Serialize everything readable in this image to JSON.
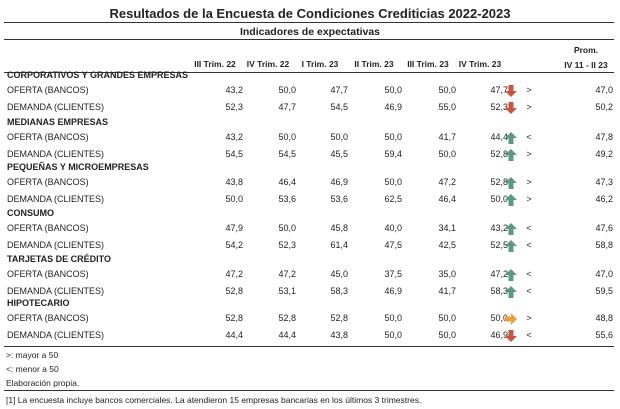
{
  "title": "Resultados de la Encuesta de Condiciones Crediticias 2022-2023",
  "subtitle": "Indicadores de expectativas",
  "columns": [
    "III Trim. 22",
    "IV Trim. 22",
    "I Trim. 23",
    "II Trim. 23",
    "III Trim. 23",
    "IV Trim. 23"
  ],
  "prom_header": [
    "Prom.",
    "IV 11 - II 23"
  ],
  "sections": [
    {
      "name": "CORPORATIVOS Y GRANDES EMPRESAS",
      "rows": [
        {
          "label": "OFERTA (BANCOS)",
          "values": [
            "43,2",
            "50,0",
            "47,7",
            "50,0",
            "50,0",
            "47,7"
          ],
          "arrow": "down",
          "cmp": ">",
          "prom": "47,0"
        },
        {
          "label": "DEMANDA (CLIENTES)",
          "values": [
            "52,3",
            "47,7",
            "54,5",
            "46,9",
            "55,0",
            "52,3"
          ],
          "arrow": "down",
          "cmp": ">",
          "prom": "50,2"
        }
      ]
    },
    {
      "name": "MEDIANAS EMPRESAS",
      "rows": [
        {
          "label": "OFERTA (BANCOS)",
          "values": [
            "43,2",
            "50,0",
            "50,0",
            "50,0",
            "41,7",
            "44,4"
          ],
          "arrow": "up",
          "cmp": "<",
          "prom": "47,8"
        },
        {
          "label": "DEMANDA (CLIENTES)",
          "values": [
            "54,5",
            "54,5",
            "45,5",
            "59,4",
            "50,0",
            "52,8"
          ],
          "arrow": "up",
          "cmp": ">",
          "prom": "49,2"
        }
      ]
    },
    {
      "name": "PEQUEÑAS Y MICROEMPRESAS",
      "rows": [
        {
          "label": "OFERTA (BANCOS)",
          "values": [
            "43,8",
            "46,4",
            "46,9",
            "50,0",
            "47,2",
            "52,8"
          ],
          "arrow": "up",
          "cmp": ">",
          "prom": "47,3"
        },
        {
          "label": "DEMANDA (CLIENTES)",
          "values": [
            "50,0",
            "53,6",
            "53,6",
            "62,5",
            "46,4",
            "50,0"
          ],
          "arrow": "up",
          "cmp": ">",
          "prom": "46,2"
        }
      ]
    },
    {
      "name": "CONSUMO",
      "rows": [
        {
          "label": "OFERTA (BANCOS)",
          "values": [
            "47,9",
            "50,0",
            "45,8",
            "40,0",
            "34,1",
            "43,2"
          ],
          "arrow": "up",
          "cmp": "<",
          "prom": "47,6"
        },
        {
          "label": "DEMANDA (CLIENTES)",
          "values": [
            "54,2",
            "52,3",
            "61,4",
            "47,5",
            "42,5",
            "52,5"
          ],
          "arrow": "up",
          "cmp": "<",
          "prom": "58,8"
        }
      ]
    },
    {
      "name": "TARJETAS DE CRÉDITO",
      "rows": [
        {
          "label": "OFERTA (BANCOS)",
          "values": [
            "47,2",
            "47,2",
            "45,0",
            "37,5",
            "35,0",
            "47,2"
          ],
          "arrow": "up",
          "cmp": "<",
          "prom": "47,0"
        },
        {
          "label": "DEMANDA (CLIENTES)",
          "values": [
            "52,8",
            "53,1",
            "58,3",
            "46,9",
            "41,7",
            "58,3"
          ],
          "arrow": "up",
          "cmp": "<",
          "prom": "59,5"
        }
      ]
    },
    {
      "name": "HIPOTECARIO",
      "rows": [
        {
          "label": "OFERTA (BANCOS)",
          "values": [
            "52,8",
            "52,8",
            "52,8",
            "50,0",
            "50,0",
            "50,0"
          ],
          "arrow": "right",
          "cmp": ">",
          "prom": "48,8"
        },
        {
          "label": "DEMANDA (CLIENTES)",
          "values": [
            "44,4",
            "44,4",
            "43,8",
            "50,0",
            "50,0",
            "46,9"
          ],
          "arrow": "down",
          "cmp": "<",
          "prom": "55,6"
        }
      ]
    }
  ],
  "notes": [
    ">: mayor a 50",
    "<: menor a 50",
    "Elaboración propia.",
    "[1] La encuesta incluye bancos comerciales. La atendieron 15 empresas bancarias en los últimos 3 trimestres."
  ],
  "colors": {
    "up": "#5a9a85",
    "down": "#c8553d",
    "right": "#e8a13c"
  }
}
